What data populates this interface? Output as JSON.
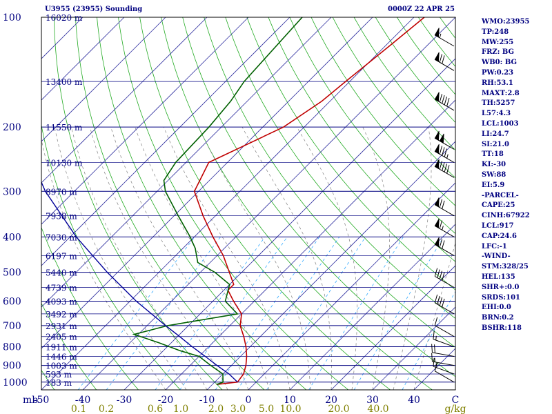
{
  "header": {
    "station": "U3955 (23955) Sounding",
    "time": "0000Z 22 APR 25"
  },
  "stats": [
    "WMO:23955",
    "TP:248",
    "MW:255",
    "FRZ: BG",
    "WB0: BG",
    "PW:0.23",
    "RH:53.1",
    "MAXT:2.8",
    "TH:5257",
    "L57:4.3",
    "LCL:1003",
    "LI:24.7",
    "SI:21.0",
    "TT:18",
    "KI:-30",
    "SW:88",
    "EI:5.9",
    "-PARCEL-",
    "CAPE:25",
    "CINH:67922",
    "LCL:917",
    "CAP:24.6",
    "LFC:-1",
    "-WIND-",
    "STM:328/25",
    "HEL:135",
    "SHR+:0.0",
    "SRDS:101",
    "EHI:0.0",
    "BRN:0.2",
    "BSHR:118"
  ],
  "colors": {
    "isobar": "#000080",
    "isotherm": "#3030a0",
    "dry_adiabat": "#22aa22",
    "mixing_ratio": "#33aaff",
    "moist_adiabat": "#808080",
    "temperature": "#c00000",
    "dewpoint": "#006000",
    "parcel": "#000099",
    "wind": "#000000",
    "label": "#000080",
    "bottom_label": "#808000"
  },
  "chart_data": {
    "type": "line",
    "title": "",
    "y_unit": "mb",
    "x_unit": "°C",
    "pressure_levels": [
      1000,
      900,
      800,
      700,
      600,
      500,
      400,
      300,
      200,
      100
    ],
    "pressure_labels": [
      "1000",
      "900",
      "800",
      "700",
      "600",
      "500",
      "400",
      "300",
      "200",
      "100"
    ],
    "temperature_ticks": [
      -50,
      -40,
      -30,
      -20,
      -10,
      0,
      10,
      20,
      30,
      40
    ],
    "temperature_tick_labels": [
      "-50",
      "-40",
      "-30",
      "-20",
      "-10",
      "0",
      "10",
      "20",
      "30",
      "40"
    ],
    "xlim": [
      -50,
      50
    ],
    "ylim": [
      1050,
      100
    ],
    "mixing_ratio_labels": [
      "0.1",
      "0.2",
      "0.6",
      "1.0",
      "2.0",
      "3.0",
      "5.0",
      "10.0",
      "20.0",
      "40.0",
      "g/kg"
    ],
    "height_labels": [
      {
        "p": 1000,
        "text": "183 m"
      },
      {
        "p": 950,
        "text": "593 m"
      },
      {
        "p": 900,
        "text": "1003 m"
      },
      {
        "p": 850,
        "text": "1446 m"
      },
      {
        "p": 800,
        "text": "1911 m"
      },
      {
        "p": 750,
        "text": "2405 m"
      },
      {
        "p": 700,
        "text": "2931 m"
      },
      {
        "p": 650,
        "text": "3492 m"
      },
      {
        "p": 600,
        "text": "4093 m"
      },
      {
        "p": 550,
        "text": "4739 m"
      },
      {
        "p": 500,
        "text": "5440 m"
      },
      {
        "p": 450,
        "text": "6197 m"
      },
      {
        "p": 400,
        "text": "7030 m"
      },
      {
        "p": 350,
        "text": "7938 m"
      },
      {
        "p": 300,
        "text": "8970 m"
      },
      {
        "p": 250,
        "text": "10130 m"
      },
      {
        "p": 200,
        "text": "11550 m"
      },
      {
        "p": 150,
        "text": "13400 m"
      },
      {
        "p": 100,
        "text": "16020 m"
      }
    ],
    "series": [
      {
        "role": "temperature",
        "points": [
          {
            "p": 1015,
            "t": -9.0
          },
          {
            "p": 1000,
            "t": -4.5
          },
          {
            "p": 950,
            "t": -5.0
          },
          {
            "p": 900,
            "t": -6.5
          },
          {
            "p": 850,
            "t": -8.5
          },
          {
            "p": 800,
            "t": -11.0
          },
          {
            "p": 750,
            "t": -14.0
          },
          {
            "p": 700,
            "t": -17.5
          },
          {
            "p": 650,
            "t": -20.0
          },
          {
            "p": 600,
            "t": -25.0
          },
          {
            "p": 560,
            "t": -29.0
          },
          {
            "p": 540,
            "t": -29.0
          },
          {
            "p": 500,
            "t": -33.0
          },
          {
            "p": 450,
            "t": -38.5
          },
          {
            "p": 400,
            "t": -45.5
          },
          {
            "p": 350,
            "t": -53.0
          },
          {
            "p": 300,
            "t": -61.0
          },
          {
            "p": 250,
            "t": -64.5
          },
          {
            "p": 200,
            "t": -55.0
          },
          {
            "p": 170,
            "t": -52.0
          },
          {
            "p": 150,
            "t": -51.0
          },
          {
            "p": 120,
            "t": -49.0
          },
          {
            "p": 100,
            "t": -47.5
          }
        ]
      },
      {
        "role": "dewpoint",
        "points": [
          {
            "p": 1015,
            "t": -9.0
          },
          {
            "p": 1000,
            "t": -8.0
          },
          {
            "p": 950,
            "t": -10.0
          },
          {
            "p": 900,
            "t": -15.0
          },
          {
            "p": 850,
            "t": -20.0
          },
          {
            "p": 820,
            "t": -26.0
          },
          {
            "p": 780,
            "t": -33.0
          },
          {
            "p": 740,
            "t": -41.0
          },
          {
            "p": 700,
            "t": -35.0
          },
          {
            "p": 650,
            "t": -21.0
          },
          {
            "p": 600,
            "t": -27.0
          },
          {
            "p": 540,
            "t": -30.0
          },
          {
            "p": 500,
            "t": -36.5
          },
          {
            "p": 470,
            "t": -43.0
          },
          {
            "p": 430,
            "t": -47.0
          },
          {
            "p": 400,
            "t": -51.0
          },
          {
            "p": 350,
            "t": -59.0
          },
          {
            "p": 300,
            "t": -68.0
          },
          {
            "p": 280,
            "t": -71.0
          },
          {
            "p": 250,
            "t": -72.5
          },
          {
            "p": 200,
            "t": -73.0
          },
          {
            "p": 170,
            "t": -74.0
          },
          {
            "p": 150,
            "t": -75.5
          },
          {
            "p": 100,
            "t": -77.0
          }
        ]
      },
      {
        "role": "parcel",
        "points": [
          {
            "p": 1000,
            "t": -4.5
          },
          {
            "p": 950,
            "t": -8.5
          },
          {
            "p": 900,
            "t": -13.5
          },
          {
            "p": 850,
            "t": -18.5
          },
          {
            "p": 800,
            "t": -24.0
          },
          {
            "p": 750,
            "t": -29.5
          },
          {
            "p": 700,
            "t": -35.5
          },
          {
            "p": 600,
            "t": -48.5
          },
          {
            "p": 500,
            "t": -62.5
          },
          {
            "p": 400,
            "t": -78.5
          },
          {
            "p": 300,
            "t": -97.0
          },
          {
            "p": 250,
            "t": -107.0
          },
          {
            "p": 200,
            "t": -118.0
          },
          {
            "p": 150,
            "t": -131.0
          },
          {
            "p": 120,
            "t": -140.0
          }
        ]
      }
    ],
    "wind_barbs": [
      {
        "p": 1000,
        "dir": 300,
        "spd": 10
      },
      {
        "p": 950,
        "dir": 290,
        "spd": 15
      },
      {
        "p": 900,
        "dir": 280,
        "spd": 15
      },
      {
        "p": 850,
        "dir": 280,
        "spd": 20
      },
      {
        "p": 800,
        "dir": 290,
        "spd": 15
      },
      {
        "p": 750,
        "dir": 300,
        "spd": 10
      },
      {
        "p": 650,
        "dir": 300,
        "spd": 40
      },
      {
        "p": 550,
        "dir": 300,
        "spd": 40
      },
      {
        "p": 450,
        "dir": 300,
        "spd": 70
      },
      {
        "p": 400,
        "dir": 300,
        "spd": 65
      },
      {
        "p": 350,
        "dir": 300,
        "spd": 70
      },
      {
        "p": 275,
        "dir": 300,
        "spd": 90
      },
      {
        "p": 250,
        "dir": 300,
        "spd": 85
      },
      {
        "p": 230,
        "dir": 300,
        "spd": 100
      },
      {
        "p": 180,
        "dir": 300,
        "spd": 90
      },
      {
        "p": 140,
        "dir": 300,
        "spd": 70
      },
      {
        "p": 120,
        "dir": 300,
        "spd": 55
      }
    ]
  }
}
